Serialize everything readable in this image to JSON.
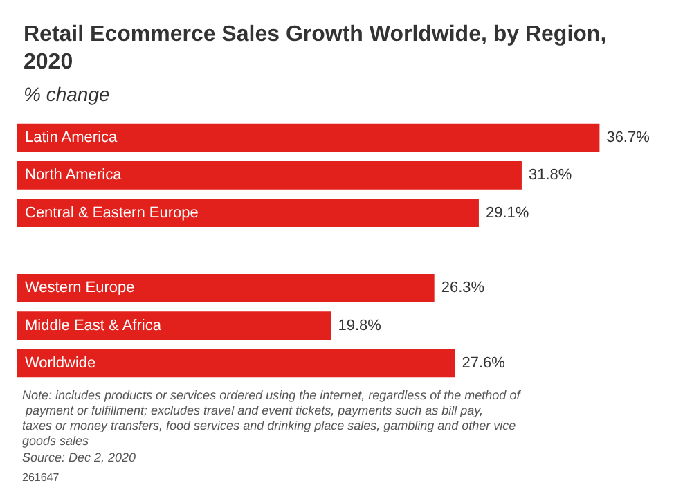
{
  "chart_data": {
    "type": "bar",
    "orientation": "horizontal",
    "title": "Retail Ecommerce Sales Growth Worldwide, by Region, 2020",
    "subtitle": "% change",
    "categories": [
      "Latin America",
      "North America",
      "Central & Eastern Europe",
      null,
      "Western Europe",
      "Middle East & Africa",
      "Worldwide"
    ],
    "values": [
      36.7,
      31.8,
      29.1,
      null,
      26.3,
      19.8,
      27.6
    ],
    "value_labels": [
      "36.7%",
      "31.8%",
      "29.1%",
      null,
      "26.3%",
      "19.8%",
      "27.6%"
    ],
    "color": "#e3211c",
    "annotations": [
      "Note: includes products or services ordered using the internet, regardless of the method of payment or fulfillment; excludes travel and event tickets, payments such as bill pay, taxes or money transfers, food services and drinking place sales, gambling and other vice goods sales",
      "Source: Dec 2, 2020",
      "261647"
    ]
  }
}
